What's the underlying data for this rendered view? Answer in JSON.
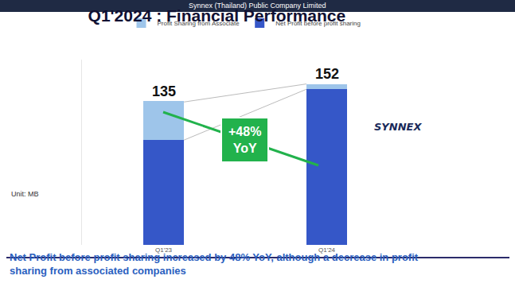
{
  "chart_data": {
    "type": "bar",
    "title": "Q1'2024 : Financial Performance",
    "subtitle": "Net Profit before profit sharing increased by 48% YoY, although a decrease in profit\nsharing from associated companies",
    "unit": "Unit: MB",
    "categories": [
      "Q1'23",
      "Q1'24"
    ],
    "series": [
      {
        "name": "Net Profit before profit sharing",
        "color": "#3557c8",
        "values": [
          99,
          147
        ]
      },
      {
        "name": "Profit Sharing from Associate",
        "color": "#9ec5ea",
        "values": [
          37,
          5
        ]
      }
    ],
    "totals": [
      135,
      152
    ],
    "annotations": [
      "+48%\nYoY"
    ],
    "logo": "SYNNEX",
    "footer": "Synnex (Thailand) Public Company Limited",
    "stacked": true,
    "data_labels": true,
    "tick_labels": "x",
    "legend": "bottom",
    "ylim": [
      0,
      175
    ],
    "yticks": [],
    "grid": false
  }
}
